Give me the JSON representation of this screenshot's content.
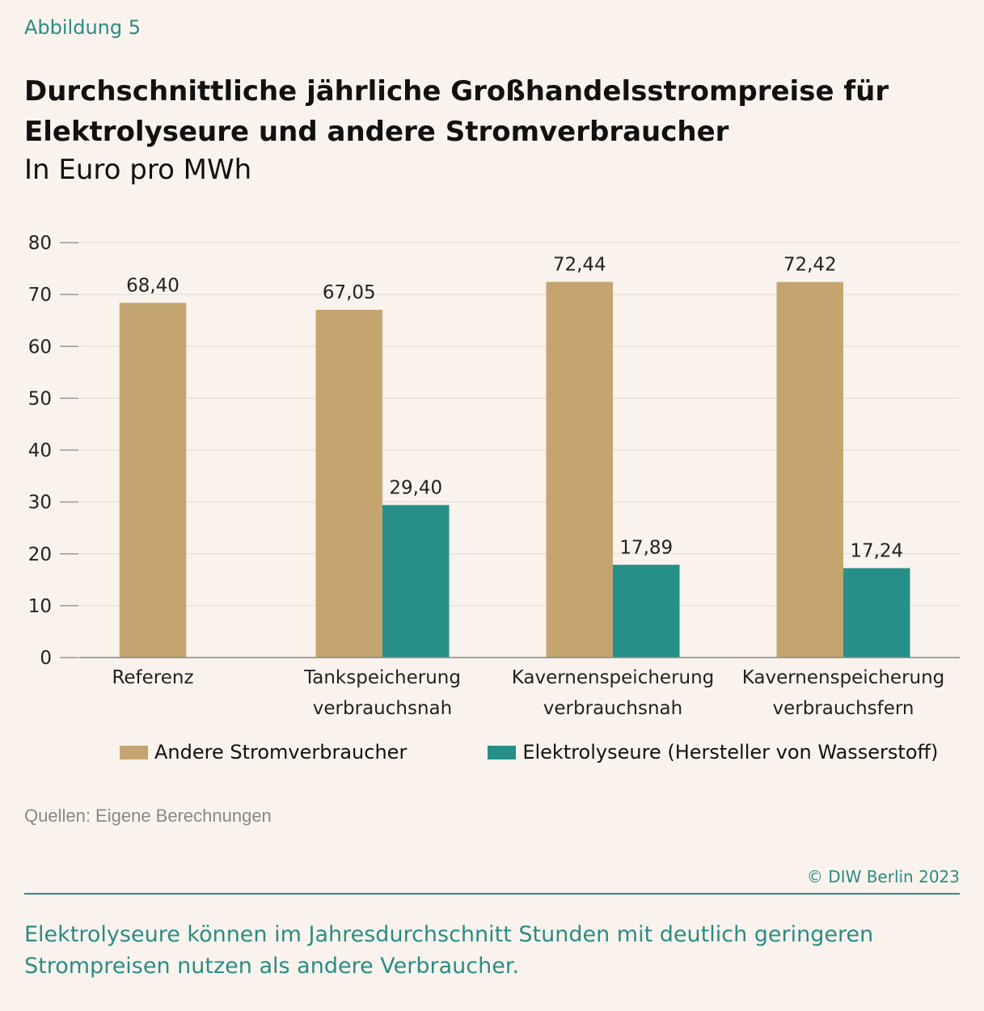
{
  "figure_label": "Abbildung 5",
  "footer": {
    "source": "Quellen: Eigene Berechnungen",
    "copyright": "© DIW Berlin 2023",
    "note": "Elektrolyseure können im Jahresdurchschnitt Stunden mit deutlich geringeren Strompreisen nutzen als andere Verbraucher."
  },
  "chart_data": {
    "type": "bar",
    "title": "Durchschnittliche jährliche Großhandelsstrompreise für Elektrolyseure und andere Stromverbraucher",
    "subtitle": "In Euro pro MWh",
    "categories": [
      [
        "Referenz"
      ],
      [
        "Tankspeicherung",
        "verbrauchsnah"
      ],
      [
        "Kavernenspeicherung",
        "verbrauchsnah"
      ],
      [
        "Kavernenspeicherung",
        "verbrauchsfern"
      ]
    ],
    "series": [
      {
        "name": "Andere Stromverbraucher",
        "color": "#c4a570",
        "values": [
          68.4,
          67.05,
          72.44,
          72.42
        ],
        "labels": [
          "68,40",
          "67,05",
          "72,44",
          "72,42"
        ]
      },
      {
        "name": "Elektrolyseure (Hersteller von Wasserstoff)",
        "color": "#268f87",
        "values": [
          null,
          29.4,
          17.89,
          17.24
        ],
        "labels": [
          null,
          "29,40",
          "17,89",
          "17,24"
        ]
      }
    ],
    "ylim": [
      0,
      80
    ],
    "yticks": [
      0,
      10,
      20,
      30,
      40,
      50,
      60,
      70,
      80
    ],
    "grid": true,
    "legend": "bottom"
  }
}
